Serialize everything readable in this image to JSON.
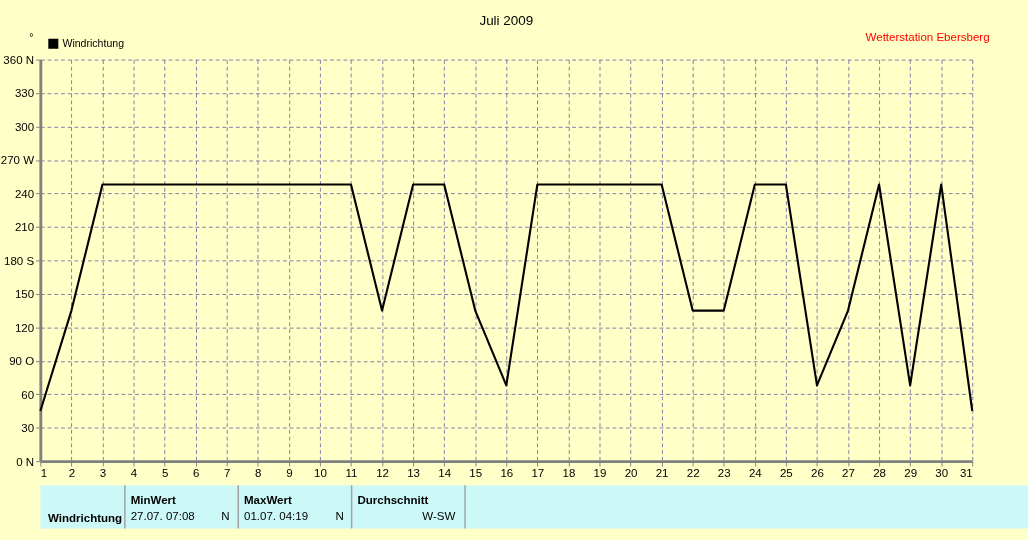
{
  "chart_data": {
    "type": "line",
    "title": "Juli 2009",
    "ylabel": "°",
    "x": [
      1,
      2,
      3,
      4,
      5,
      6,
      7,
      8,
      9,
      10,
      11,
      12,
      13,
      14,
      15,
      16,
      17,
      18,
      19,
      20,
      21,
      22,
      23,
      24,
      25,
      26,
      27,
      28,
      29,
      30,
      31
    ],
    "series": [
      {
        "name": "Windrichtung",
        "color": "#000000",
        "values": [
          45,
          135,
          248,
          248,
          248,
          248,
          248,
          248,
          248,
          248,
          248,
          135,
          248,
          248,
          135,
          68,
          248,
          248,
          248,
          248,
          248,
          135,
          135,
          248,
          248,
          68,
          135,
          248,
          68,
          248,
          45
        ]
      }
    ],
    "xlim": [
      1,
      31
    ],
    "xticks": [
      1,
      2,
      3,
      4,
      5,
      6,
      7,
      8,
      9,
      10,
      11,
      12,
      13,
      14,
      15,
      16,
      17,
      18,
      19,
      20,
      21,
      22,
      23,
      24,
      25,
      26,
      27,
      28,
      29,
      30,
      31
    ],
    "ylim": [
      0,
      360
    ],
    "yticks": [
      {
        "value": 0,
        "label": "0   N"
      },
      30,
      60,
      {
        "value": 90,
        "label": "90  O"
      },
      120,
      150,
      {
        "value": 180,
        "label": "180 S"
      },
      210,
      240,
      {
        "value": 270,
        "label": "270 W"
      },
      300,
      330,
      {
        "value": 360,
        "label": "360 N"
      }
    ],
    "grid": true,
    "legend": "top left",
    "marker": "none",
    "line_style": "solid",
    "annotations": [
      "Wetterstation Ebersberg",
      "Windrichtung",
      "MinWert",
      "27.07.  07:08",
      "N",
      "MaxWert",
      "01.07.  04:19",
      "N",
      "Durchschnitt",
      "W-SW"
    ]
  }
}
